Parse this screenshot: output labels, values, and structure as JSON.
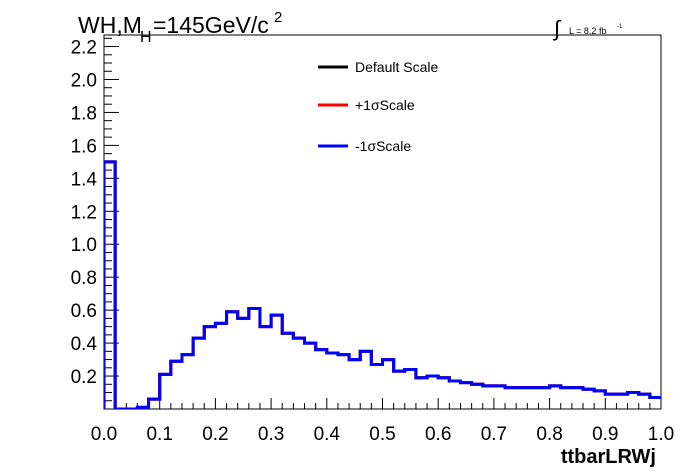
{
  "header": {
    "title_main": "WH,M",
    "title_sub": "H",
    "title_rest": "=145GeV/c",
    "title_sup": "2",
    "lumi_int": "∫",
    "lumi_text": "L = 8.2 fb",
    "lumi_sup": "-1"
  },
  "chart_data": {
    "type": "line",
    "xlabel": "ttbarLRWj",
    "ylabel": "",
    "xlim": [
      0.0,
      1.0
    ],
    "ylim": [
      0.0,
      2.27
    ],
    "grid": false,
    "legend_position": "top-center",
    "x_ticks": [
      "0.0",
      "0.1",
      "0.2",
      "0.3",
      "0.4",
      "0.5",
      "0.6",
      "0.7",
      "0.8",
      "0.9",
      "1.0"
    ],
    "y_ticks": [
      "0.2",
      "0.4",
      "0.6",
      "0.8",
      "1.0",
      "1.2",
      "1.4",
      "1.6",
      "1.8",
      "2.0",
      "2.2"
    ],
    "bin_edges_start": 0.0,
    "bin_width": 0.02,
    "series": [
      {
        "name": "Default Scale",
        "color": "#000000",
        "values": [
          1.5,
          0.0,
          0.0,
          0.01,
          0.06,
          0.21,
          0.29,
          0.33,
          0.43,
          0.5,
          0.52,
          0.59,
          0.55,
          0.61,
          0.5,
          0.57,
          0.46,
          0.43,
          0.4,
          0.36,
          0.34,
          0.33,
          0.3,
          0.35,
          0.27,
          0.3,
          0.23,
          0.24,
          0.19,
          0.2,
          0.19,
          0.17,
          0.16,
          0.15,
          0.14,
          0.14,
          0.13,
          0.13,
          0.13,
          0.13,
          0.14,
          0.13,
          0.13,
          0.12,
          0.11,
          0.09,
          0.09,
          0.1,
          0.09,
          0.07
        ]
      },
      {
        "name": "+1σScale",
        "color": "#ff0000",
        "values": [
          1.5,
          0.0,
          0.0,
          0.01,
          0.06,
          0.21,
          0.29,
          0.33,
          0.43,
          0.5,
          0.52,
          0.59,
          0.55,
          0.61,
          0.5,
          0.57,
          0.46,
          0.43,
          0.4,
          0.36,
          0.34,
          0.33,
          0.3,
          0.35,
          0.27,
          0.3,
          0.23,
          0.24,
          0.19,
          0.2,
          0.19,
          0.17,
          0.16,
          0.15,
          0.14,
          0.14,
          0.13,
          0.13,
          0.13,
          0.13,
          0.14,
          0.13,
          0.13,
          0.12,
          0.11,
          0.09,
          0.09,
          0.1,
          0.09,
          0.07
        ]
      },
      {
        "name": "-1σScale",
        "color": "#0000ff",
        "values": [
          1.5,
          0.0,
          0.0,
          0.01,
          0.06,
          0.21,
          0.29,
          0.33,
          0.43,
          0.5,
          0.52,
          0.59,
          0.55,
          0.61,
          0.5,
          0.57,
          0.46,
          0.43,
          0.4,
          0.36,
          0.34,
          0.33,
          0.3,
          0.35,
          0.27,
          0.3,
          0.23,
          0.24,
          0.19,
          0.2,
          0.19,
          0.17,
          0.16,
          0.15,
          0.14,
          0.14,
          0.13,
          0.13,
          0.13,
          0.13,
          0.14,
          0.13,
          0.13,
          0.12,
          0.11,
          0.09,
          0.09,
          0.1,
          0.09,
          0.07
        ]
      }
    ]
  }
}
